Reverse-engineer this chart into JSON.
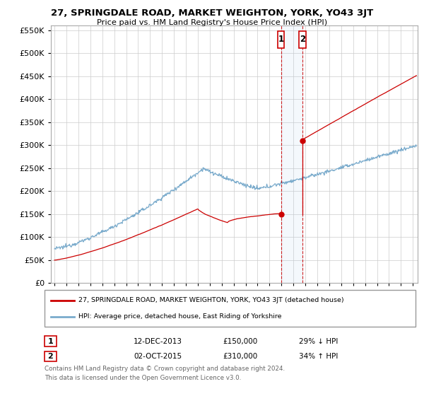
{
  "title": "27, SPRINGDALE ROAD, MARKET WEIGHTON, YORK, YO43 3JT",
  "subtitle": "Price paid vs. HM Land Registry's House Price Index (HPI)",
  "ylim": [
    0,
    550000
  ],
  "xlim_start": 1994.7,
  "xlim_end": 2025.4,
  "transaction1": {
    "date_x": 2013.96,
    "price": 150000,
    "label": "1",
    "date_str": "12-DEC-2013",
    "pct": "29% ↓ HPI"
  },
  "transaction2": {
    "date_x": 2015.75,
    "price": 310000,
    "label": "2",
    "date_str": "02-OCT-2015",
    "pct": "34% ↑ HPI"
  },
  "legend1": "27, SPRINGDALE ROAD, MARKET WEIGHTON, YORK, YO43 3JT (detached house)",
  "legend2": "HPI: Average price, detached house, East Riding of Yorkshire",
  "footer1": "Contains HM Land Registry data © Crown copyright and database right 2024.",
  "footer2": "This data is licensed under the Open Government Licence v3.0.",
  "red_color": "#cc0000",
  "blue_color": "#7aabcc",
  "background_color": "#ffffff",
  "grid_color": "#cccccc",
  "dashed_color": "#cc0000"
}
